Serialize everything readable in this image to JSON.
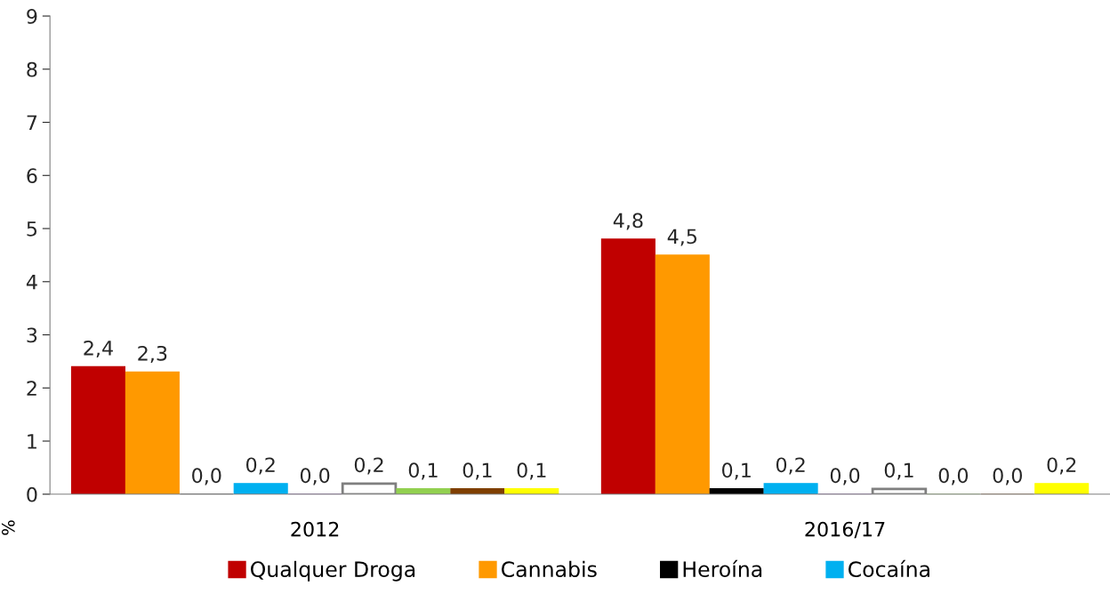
{
  "chart_data": {
    "type": "bar",
    "ylabel": "%",
    "categories": [
      "2012",
      "2016/17"
    ],
    "series": [
      {
        "name": "Qualquer Droga",
        "color": "#c00000",
        "values": [
          2.4,
          4.8
        ],
        "value_labels": [
          "2,4",
          "4,8"
        ]
      },
      {
        "name": "Cannabis",
        "color": "#ff9900",
        "values": [
          2.3,
          4.5
        ],
        "value_labels": [
          "2,3",
          "4,5"
        ]
      },
      {
        "name": "Heroína",
        "color": "#000000",
        "values": [
          0.0,
          0.1
        ],
        "value_labels": [
          "0,0",
          "0,1"
        ]
      },
      {
        "name": "Cocaína",
        "color": "#00b0f0",
        "values": [
          0.2,
          0.2
        ],
        "value_labels": [
          "0,2",
          "0,2"
        ]
      },
      {
        "color": "#7030a0",
        "values": [
          0.0,
          0.0
        ],
        "value_labels": [
          "0,0",
          "0,0"
        ]
      },
      {
        "color": "#ffffff",
        "values": [
          0.2,
          0.1
        ],
        "value_labels": [
          "0,2",
          "0,1"
        ]
      },
      {
        "color": "#92d050",
        "values": [
          0.1,
          0.0
        ],
        "value_labels": [
          "0,1",
          "0,0"
        ]
      },
      {
        "color": "#7f3f00",
        "values": [
          0.1,
          0.0
        ],
        "value_labels": [
          "0,1",
          "0,0"
        ]
      },
      {
        "color": "#ffff00",
        "values": [
          0.1,
          0.2
        ],
        "value_labels": [
          "0,1",
          "0,2"
        ]
      }
    ],
    "ylim": [
      0,
      9
    ],
    "yticks": [
      0,
      1,
      2,
      3,
      4,
      5,
      6,
      7,
      8,
      9
    ],
    "grid": false,
    "legend": "bottom"
  }
}
